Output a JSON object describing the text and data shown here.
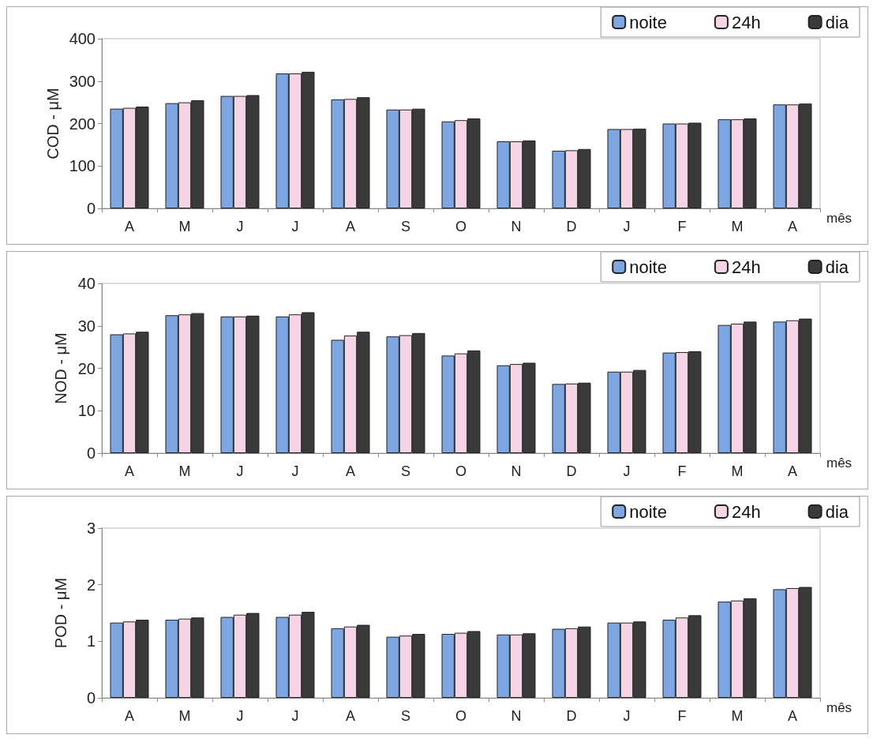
{
  "chart_data": [
    {
      "type": "bar",
      "ylabel": "COD - μM",
      "xlabel": "mês",
      "categories": [
        "A",
        "M",
        "J",
        "J",
        "A",
        "S",
        "O",
        "N",
        "D",
        "J",
        "F",
        "M",
        "A"
      ],
      "ylim": [
        0,
        400
      ],
      "yticks": [
        0,
        100,
        200,
        300,
        400
      ],
      "grid": false,
      "legend": "top right",
      "series": [
        {
          "name": "noite",
          "color": "#7ea6e0",
          "values": [
            235,
            248,
            265,
            318,
            257,
            233,
            205,
            158,
            136,
            187,
            200,
            210,
            245
          ]
        },
        {
          "name": "24h",
          "color": "#f5d5e5",
          "values": [
            237,
            250,
            265,
            318,
            258,
            233,
            208,
            158,
            137,
            187,
            200,
            210,
            245
          ]
        },
        {
          "name": "dia",
          "color": "#3a3a3a",
          "values": [
            240,
            255,
            267,
            322,
            262,
            235,
            212,
            160,
            140,
            188,
            202,
            212,
            247
          ]
        }
      ]
    },
    {
      "type": "bar",
      "ylabel": "NOD - μM",
      "xlabel": "mês",
      "categories": [
        "A",
        "M",
        "J",
        "J",
        "A",
        "S",
        "O",
        "N",
        "D",
        "J",
        "F",
        "M",
        "A"
      ],
      "ylim": [
        0,
        40
      ],
      "yticks": [
        0,
        10,
        20,
        30,
        40
      ],
      "grid": false,
      "legend": "top right",
      "series": [
        {
          "name": "noite",
          "color": "#7ea6e0",
          "values": [
            28,
            32.5,
            32.2,
            32.2,
            26.7,
            27.5,
            23,
            20.7,
            16.3,
            19.2,
            23.7,
            30.2,
            31
          ]
        },
        {
          "name": "24h",
          "color": "#f5d5e5",
          "values": [
            28.2,
            32.7,
            32.2,
            32.7,
            27.7,
            27.8,
            23.5,
            21,
            16.4,
            19.2,
            23.8,
            30.5,
            31.3
          ]
        },
        {
          "name": "dia",
          "color": "#3a3a3a",
          "values": [
            28.6,
            33,
            32.4,
            33.2,
            28.6,
            28.3,
            24.2,
            21.3,
            16.6,
            19.6,
            24,
            31,
            31.7
          ]
        }
      ]
    },
    {
      "type": "bar",
      "ylabel": "POD - μM",
      "xlabel": "mês",
      "categories": [
        "A",
        "M",
        "J",
        "J",
        "A",
        "S",
        "O",
        "N",
        "D",
        "J",
        "F",
        "M",
        "A"
      ],
      "ylim": [
        0,
        3
      ],
      "yticks": [
        0,
        1,
        2,
        3
      ],
      "grid": false,
      "legend": "top right",
      "series": [
        {
          "name": "noite",
          "color": "#7ea6e0",
          "values": [
            1.33,
            1.38,
            1.43,
            1.43,
            1.23,
            1.08,
            1.13,
            1.12,
            1.22,
            1.33,
            1.38,
            1.7,
            1.92
          ]
        },
        {
          "name": "24h",
          "color": "#f5d5e5",
          "values": [
            1.35,
            1.4,
            1.47,
            1.47,
            1.26,
            1.1,
            1.15,
            1.12,
            1.23,
            1.33,
            1.42,
            1.72,
            1.94
          ]
        },
        {
          "name": "dia",
          "color": "#3a3a3a",
          "values": [
            1.38,
            1.42,
            1.5,
            1.52,
            1.29,
            1.13,
            1.18,
            1.14,
            1.26,
            1.35,
            1.46,
            1.76,
            1.96
          ]
        }
      ]
    }
  ]
}
